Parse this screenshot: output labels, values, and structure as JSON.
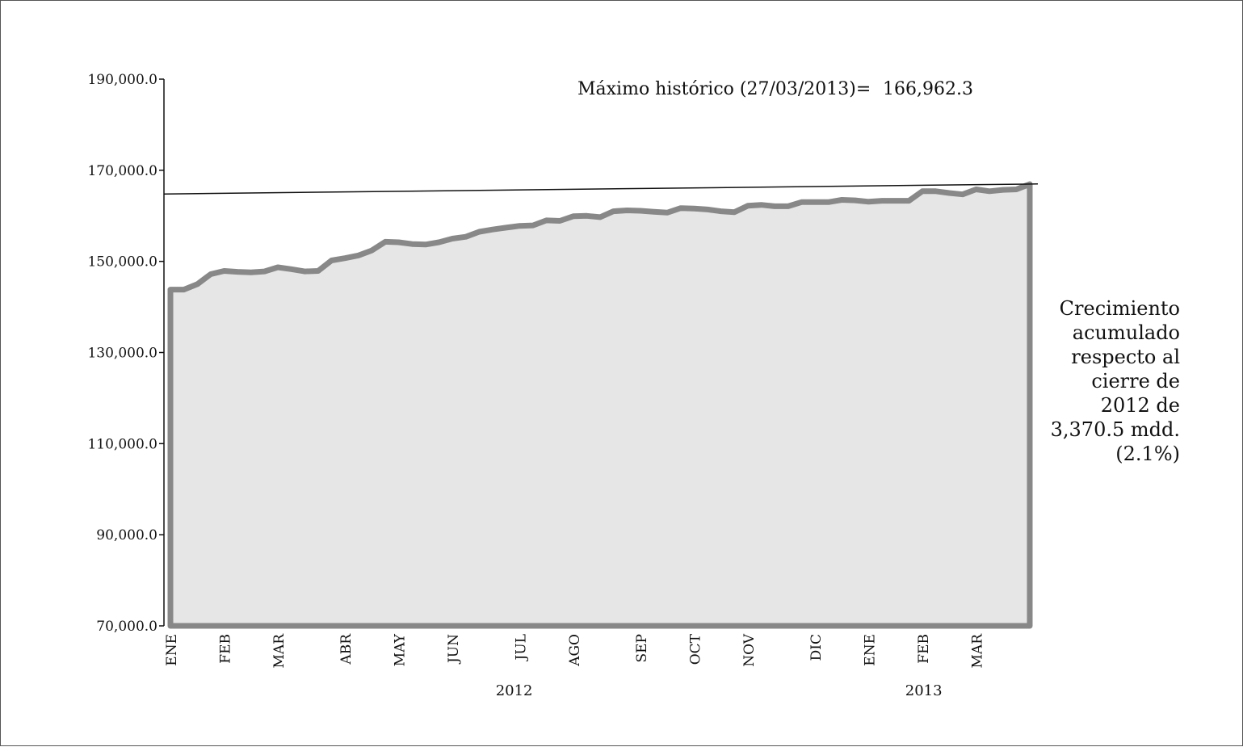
{
  "chart_data": {
    "type": "area",
    "title": "",
    "xlabel": "",
    "ylabel": "",
    "ylim": [
      70000,
      190000
    ],
    "y_ticks": [
      "190,000.0",
      "170,000.0",
      "150,000.0",
      "130,000.0",
      "110,000.0",
      "90,000.0",
      "70,000.0"
    ],
    "y_tick_values": [
      190000,
      170000,
      150000,
      130000,
      110000,
      90000,
      70000
    ],
    "x_month_labels": [
      "ENE",
      "FEB",
      "MAR",
      "ABR",
      "MAY",
      "JUN",
      "JUL",
      "AGO",
      "SEP",
      "OCT",
      "NOV",
      "DIC",
      "ENE",
      "FEB",
      "MAR"
    ],
    "x_month_positions": [
      0,
      4,
      8,
      13,
      17,
      21,
      26,
      30,
      35,
      39,
      43,
      48,
      52,
      56,
      60
    ],
    "year_labels": [
      {
        "text": "2012",
        "position": 25.6
      },
      {
        "text": "2013",
        "position": 56.1
      }
    ],
    "series": [
      {
        "values": [
          143800,
          143800,
          145000,
          147200,
          147900,
          147700,
          147600,
          147800,
          148700,
          148300,
          147800,
          147900,
          150200,
          150700,
          151300,
          152400,
          154300,
          154200,
          153800,
          153700,
          154200,
          155000,
          155400,
          156500,
          157000,
          157400,
          157800,
          157900,
          159000,
          158900,
          159900,
          160000,
          159700,
          161000,
          161200,
          161100,
          160900,
          160700,
          161700,
          161600,
          161400,
          161000,
          160800,
          162200,
          162400,
          162100,
          162100,
          163000,
          163000,
          163000,
          163500,
          163400,
          163100,
          163300,
          163300,
          163300,
          165400,
          165400,
          165000,
          164700,
          165800,
          165400,
          165700,
          165800,
          166962.3
        ]
      }
    ],
    "trend_line": {
      "start": 164800,
      "end": 167000
    },
    "colors": {
      "area_fill": "#e6e6e6",
      "line": "#888888",
      "trend": "#111111",
      "axis": "#111111"
    },
    "annotations": {
      "max_label": "Máximo histórico (27/03/2013)=",
      "max_value": "166,962.3",
      "growth_note": "Crecimiento\nacumulado\nrespecto al\ncierre de\n2012 de\n3,370.5 mdd.\n(2.1%)"
    },
    "grid": false,
    "legend": "none"
  }
}
